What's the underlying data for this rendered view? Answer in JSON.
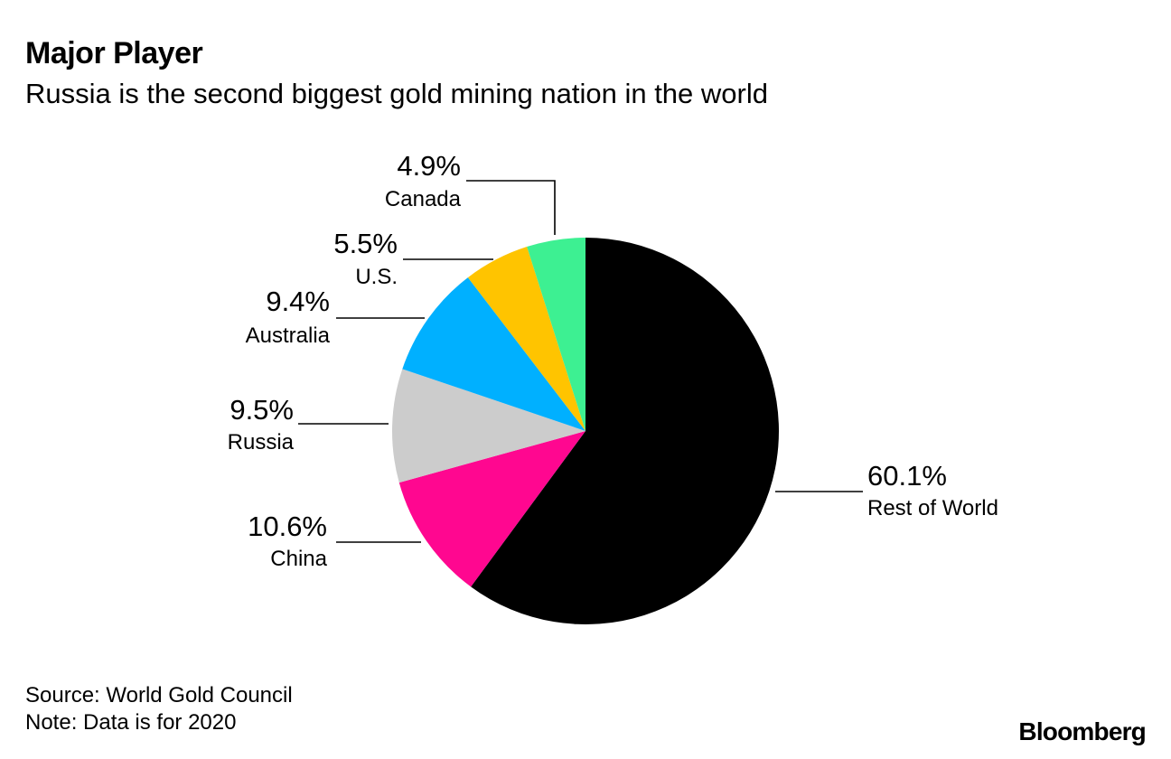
{
  "header": {
    "title": "Major Player",
    "subtitle": "Russia is the second biggest gold mining nation in the world"
  },
  "chart_data": {
    "type": "pie",
    "title": "Major Player",
    "subtitle": "Russia is the second biggest gold mining nation in the world",
    "unit": "%",
    "slices": [
      {
        "label": "Rest of World",
        "value": 60.1,
        "display": "60.1%",
        "color": "#000000"
      },
      {
        "label": "China",
        "value": 10.6,
        "display": "10.6%",
        "color": "#ff0790"
      },
      {
        "label": "Russia",
        "value": 9.5,
        "display": "9.5%",
        "color": "#cccccc"
      },
      {
        "label": "Australia",
        "value": 9.4,
        "display": "9.4%",
        "color": "#00b0ff"
      },
      {
        "label": "U.S.",
        "value": 5.5,
        "display": "5.5%",
        "color": "#ffc400"
      },
      {
        "label": "Canada",
        "value": 4.9,
        "display": "4.9%",
        "color": "#3df092"
      }
    ],
    "start": "top, clockwise"
  },
  "footer": {
    "source": "Source: World Gold Council",
    "note": "Note: Data is for 2020",
    "brand": "Bloomberg"
  }
}
